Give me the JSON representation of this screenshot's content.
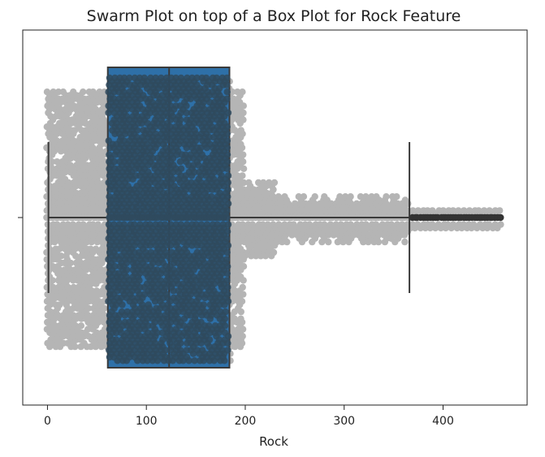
{
  "chart_data": {
    "type": "box",
    "overlay": "swarm",
    "title": "Swarm Plot on top of a Box Plot for Rock Feature",
    "xlabel": "Rock",
    "ylabel": "",
    "xlim": [
      -25,
      485
    ],
    "xticks": [
      0,
      100,
      200,
      300,
      400
    ],
    "box": {
      "whisker_low": 1,
      "q1": 61,
      "median": 123,
      "q3": 184,
      "whisker_high": 366,
      "fliers_min": 367,
      "fliers_max": 459
    },
    "swarm_extent": {
      "min": 0,
      "max": 460
    },
    "colors": {
      "box_fill": "#2e70a8",
      "box_edge": "#3a3a3a",
      "swarm_light": "#b5b5b5",
      "swarm_dark": "#2f4a5e",
      "flier_dark": "#333333"
    },
    "grid": false,
    "legend": "none"
  }
}
